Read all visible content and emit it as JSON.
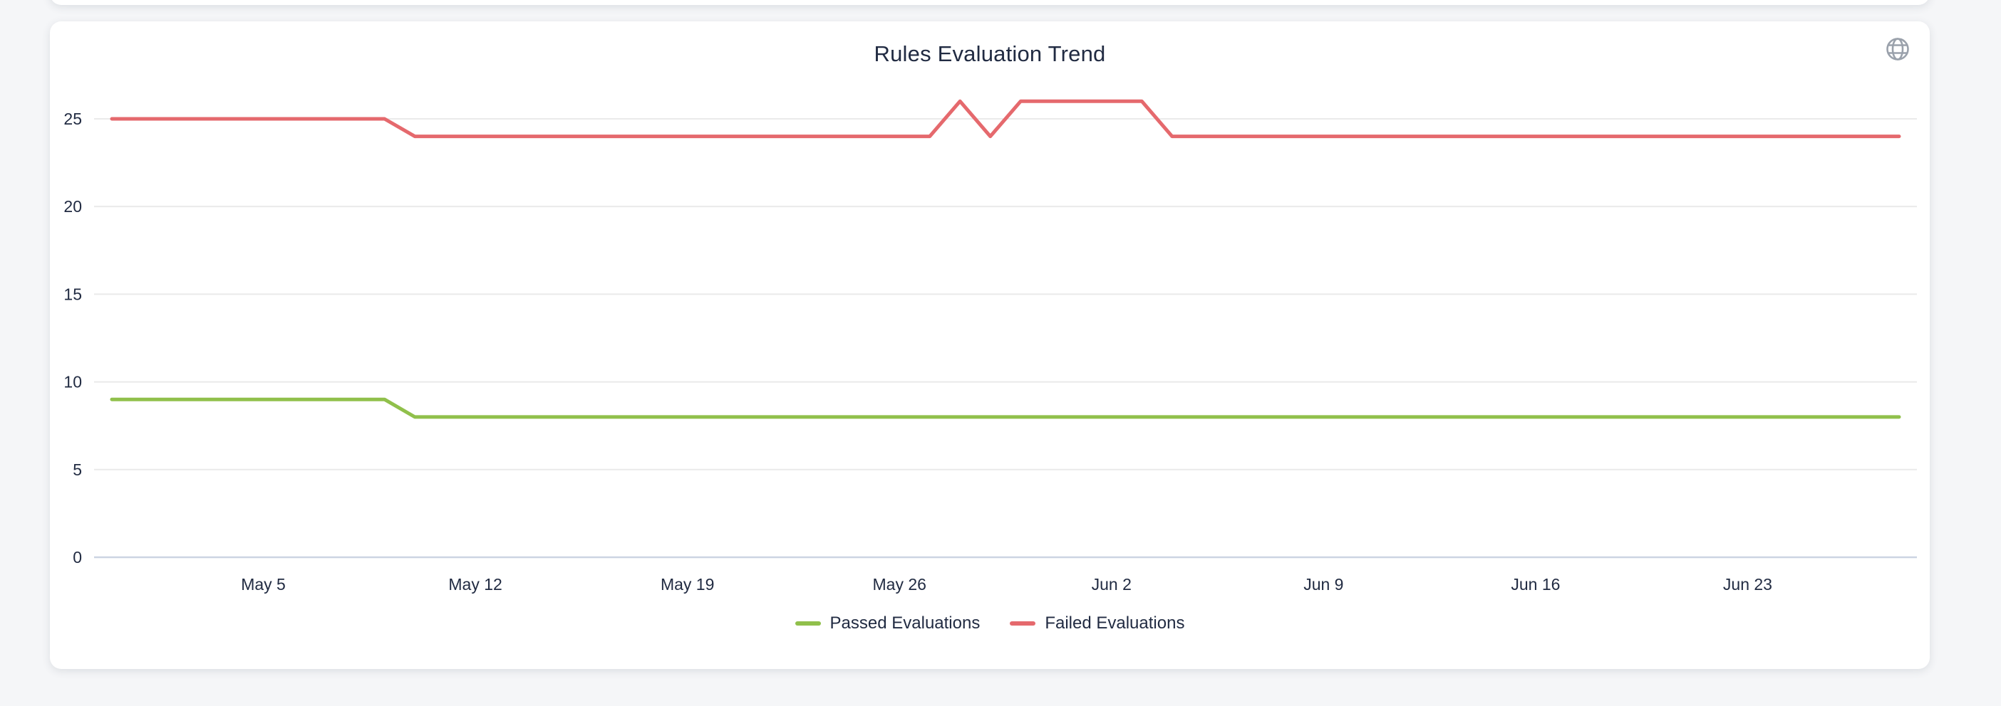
{
  "page": {
    "background": "#f5f6f8"
  },
  "card": {
    "title": "Rules Evaluation Trend",
    "icon": "globe-icon",
    "icon_color": "#9aa1ab"
  },
  "colors": {
    "passed": "#90c04b",
    "failed": "#e5696d",
    "text": "#212b42",
    "gridline": "#eaeaea",
    "axis_line": "#ccd4e2",
    "card_background": "#ffffff"
  },
  "chart_data": {
    "type": "line",
    "title": "Rules Evaluation Trend",
    "grid": true,
    "legend_position": "bottom",
    "ylim": [
      0,
      26.5
    ],
    "y_ticks": [
      0,
      5,
      10,
      15,
      20,
      25
    ],
    "x_tick_labels": [
      "May 5",
      "May 12",
      "May 19",
      "May 26",
      "Jun 2",
      "Jun 9",
      "Jun 16",
      "Jun 23"
    ],
    "x": [
      "Apr 30",
      "May 1",
      "May 2",
      "May 3",
      "May 4",
      "May 5",
      "May 6",
      "May 7",
      "May 8",
      "May 9",
      "May 10",
      "May 11",
      "May 12",
      "May 13",
      "May 14",
      "May 15",
      "May 16",
      "May 17",
      "May 18",
      "May 19",
      "May 20",
      "May 21",
      "May 22",
      "May 23",
      "May 24",
      "May 25",
      "May 26",
      "May 27",
      "May 28",
      "May 29",
      "May 30",
      "May 31",
      "Jun 1",
      "Jun 2",
      "Jun 3",
      "Jun 4",
      "Jun 5",
      "Jun 6",
      "Jun 7",
      "Jun 8",
      "Jun 9",
      "Jun 10",
      "Jun 11",
      "Jun 12",
      "Jun 13",
      "Jun 14",
      "Jun 15",
      "Jun 16",
      "Jun 17",
      "Jun 18",
      "Jun 19",
      "Jun 20",
      "Jun 21",
      "Jun 22",
      "Jun 23",
      "Jun 24",
      "Jun 25",
      "Jun 26",
      "Jun 27",
      "Jun 28"
    ],
    "series": [
      {
        "name": "Passed Evaluations",
        "color": "#90c04b",
        "values": [
          9,
          9,
          9,
          9,
          9,
          9,
          9,
          9,
          9,
          9,
          8,
          8,
          8,
          8,
          8,
          8,
          8,
          8,
          8,
          8,
          8,
          8,
          8,
          8,
          8,
          8,
          8,
          8,
          8,
          8,
          8,
          8,
          8,
          8,
          8,
          8,
          8,
          8,
          8,
          8,
          8,
          8,
          8,
          8,
          8,
          8,
          8,
          8,
          8,
          8,
          8,
          8,
          8,
          8,
          8,
          8,
          8,
          8,
          8,
          8
        ]
      },
      {
        "name": "Failed Evaluations",
        "color": "#e5696d",
        "values": [
          25,
          25,
          25,
          25,
          25,
          25,
          25,
          25,
          25,
          25,
          24,
          24,
          24,
          24,
          24,
          24,
          24,
          24,
          24,
          24,
          24,
          24,
          24,
          24,
          24,
          24,
          24,
          24,
          26,
          24,
          26,
          26,
          26,
          26,
          26,
          24,
          24,
          24,
          24,
          24,
          24,
          24,
          24,
          24,
          24,
          24,
          24,
          24,
          24,
          24,
          24,
          24,
          24,
          24,
          24,
          24,
          24,
          24,
          24,
          24
        ]
      }
    ]
  }
}
